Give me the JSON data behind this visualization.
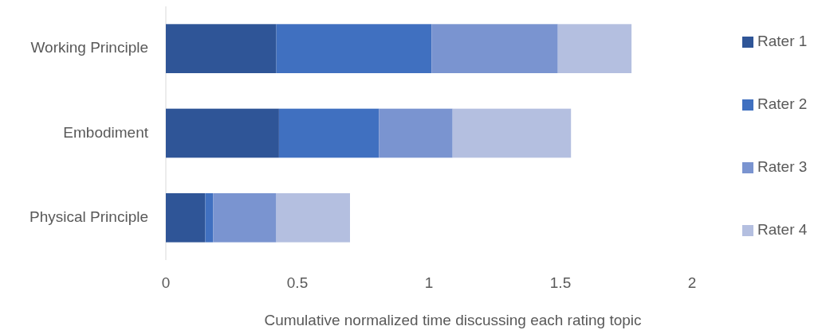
{
  "chart_data": {
    "type": "bar",
    "orientation": "horizontal",
    "stacked": true,
    "xlabel": "Cumulative normalized time discussing each rating topic",
    "categories": [
      "Working Principle",
      "Embodiment",
      "Physical Principle"
    ],
    "series": [
      {
        "name": "Rater 1",
        "color": "#2f5597",
        "values": [
          0.42,
          0.43,
          0.15
        ]
      },
      {
        "name": "Rater 2",
        "color": "#4070c0",
        "values": [
          0.59,
          0.38,
          0.03
        ]
      },
      {
        "name": "Rater 3",
        "color": "#7a94d0",
        "values": [
          0.48,
          0.28,
          0.24
        ]
      },
      {
        "name": "Rater 4",
        "color": "#b4bfe0",
        "values": [
          0.28,
          0.45,
          0.28
        ]
      }
    ],
    "xlim": [
      0,
      2
    ],
    "xticks": [
      0,
      0.5,
      1,
      1.5,
      2
    ],
    "grid": false,
    "legend": "right"
  }
}
